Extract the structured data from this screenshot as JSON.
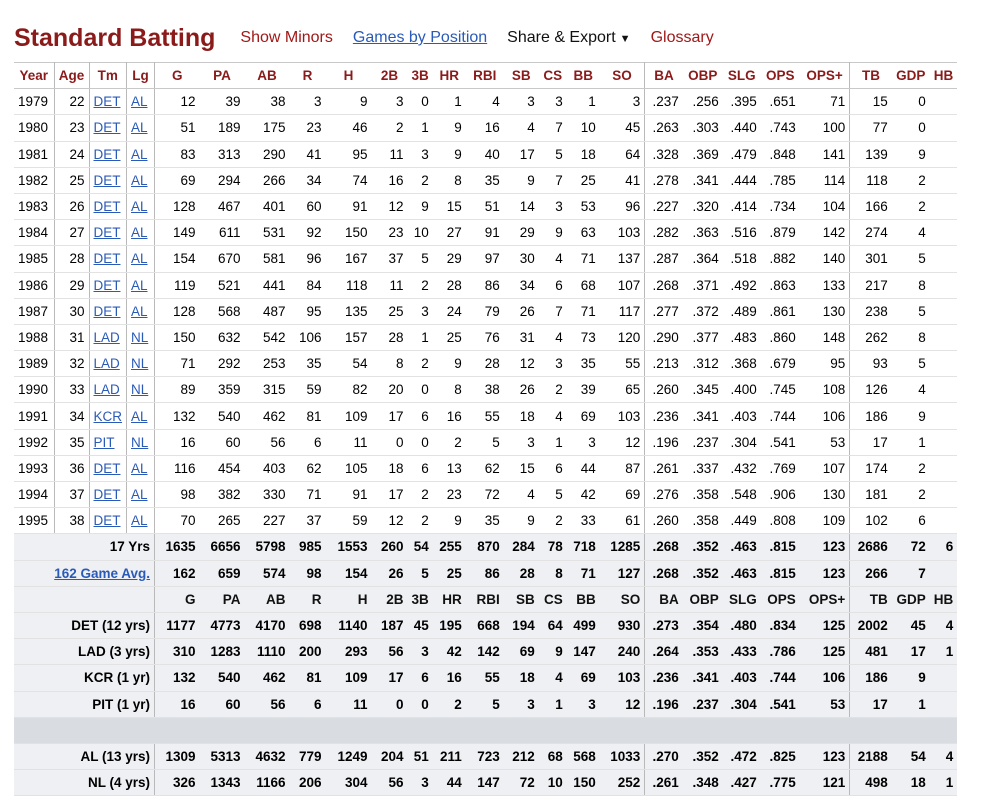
{
  "header": {
    "title": "Standard Batting",
    "show_minors": "Show Minors",
    "games_by_position": "Games by Position",
    "share_export": "Share & Export",
    "share_caret": "▼",
    "glossary": "Glossary"
  },
  "columns": [
    "Year",
    "Age",
    "Tm",
    "Lg",
    "G",
    "PA",
    "AB",
    "R",
    "H",
    "2B",
    "3B",
    "HR",
    "RBI",
    "SB",
    "CS",
    "BB",
    "SO",
    "BA",
    "OBP",
    "SLG",
    "OPS",
    "OPS+",
    "TB",
    "GDP",
    "HB"
  ],
  "rows": [
    [
      "1979",
      "22",
      "DET",
      "AL",
      "12",
      "39",
      "38",
      "3",
      "9",
      "3",
      "0",
      "1",
      "4",
      "3",
      "3",
      "1",
      "3",
      ".237",
      ".256",
      ".395",
      ".651",
      "71",
      "15",
      "0",
      ""
    ],
    [
      "1980",
      "23",
      "DET",
      "AL",
      "51",
      "189",
      "175",
      "23",
      "46",
      "2",
      "1",
      "9",
      "16",
      "4",
      "7",
      "10",
      "45",
      ".263",
      ".303",
      ".440",
      ".743",
      "100",
      "77",
      "0",
      ""
    ],
    [
      "1981",
      "24",
      "DET",
      "AL",
      "83",
      "313",
      "290",
      "41",
      "95",
      "11",
      "3",
      "9",
      "40",
      "17",
      "5",
      "18",
      "64",
      ".328",
      ".369",
      ".479",
      ".848",
      "141",
      "139",
      "9",
      ""
    ],
    [
      "1982",
      "25",
      "DET",
      "AL",
      "69",
      "294",
      "266",
      "34",
      "74",
      "16",
      "2",
      "8",
      "35",
      "9",
      "7",
      "25",
      "41",
      ".278",
      ".341",
      ".444",
      ".785",
      "114",
      "118",
      "2",
      ""
    ],
    [
      "1983",
      "26",
      "DET",
      "AL",
      "128",
      "467",
      "401",
      "60",
      "91",
      "12",
      "9",
      "15",
      "51",
      "14",
      "3",
      "53",
      "96",
      ".227",
      ".320",
      ".414",
      ".734",
      "104",
      "166",
      "2",
      ""
    ],
    [
      "1984",
      "27",
      "DET",
      "AL",
      "149",
      "611",
      "531",
      "92",
      "150",
      "23",
      "10",
      "27",
      "91",
      "29",
      "9",
      "63",
      "103",
      ".282",
      ".363",
      ".516",
      ".879",
      "142",
      "274",
      "4",
      ""
    ],
    [
      "1985",
      "28",
      "DET",
      "AL",
      "154",
      "670",
      "581",
      "96",
      "167",
      "37",
      "5",
      "29",
      "97",
      "30",
      "4",
      "71",
      "137",
      ".287",
      ".364",
      ".518",
      ".882",
      "140",
      "301",
      "5",
      ""
    ],
    [
      "1986",
      "29",
      "DET",
      "AL",
      "119",
      "521",
      "441",
      "84",
      "118",
      "11",
      "2",
      "28",
      "86",
      "34",
      "6",
      "68",
      "107",
      ".268",
      ".371",
      ".492",
      ".863",
      "133",
      "217",
      "8",
      ""
    ],
    [
      "1987",
      "30",
      "DET",
      "AL",
      "128",
      "568",
      "487",
      "95",
      "135",
      "25",
      "3",
      "24",
      "79",
      "26",
      "7",
      "71",
      "117",
      ".277",
      ".372",
      ".489",
      ".861",
      "130",
      "238",
      "5",
      ""
    ],
    [
      "1988",
      "31",
      "LAD",
      "NL",
      "150",
      "632",
      "542",
      "106",
      "157",
      "28",
      "1",
      "25",
      "76",
      "31",
      "4",
      "73",
      "120",
      ".290",
      ".377",
      ".483",
      ".860",
      "148",
      "262",
      "8",
      ""
    ],
    [
      "1989",
      "32",
      "LAD",
      "NL",
      "71",
      "292",
      "253",
      "35",
      "54",
      "8",
      "2",
      "9",
      "28",
      "12",
      "3",
      "35",
      "55",
      ".213",
      ".312",
      ".368",
      ".679",
      "95",
      "93",
      "5",
      ""
    ],
    [
      "1990",
      "33",
      "LAD",
      "NL",
      "89",
      "359",
      "315",
      "59",
      "82",
      "20",
      "0",
      "8",
      "38",
      "26",
      "2",
      "39",
      "65",
      ".260",
      ".345",
      ".400",
      ".745",
      "108",
      "126",
      "4",
      ""
    ],
    [
      "1991",
      "34",
      "KCR",
      "AL",
      "132",
      "540",
      "462",
      "81",
      "109",
      "17",
      "6",
      "16",
      "55",
      "18",
      "4",
      "69",
      "103",
      ".236",
      ".341",
      ".403",
      ".744",
      "106",
      "186",
      "9",
      ""
    ],
    [
      "1992",
      "35",
      "PIT",
      "NL",
      "16",
      "60",
      "56",
      "6",
      "11",
      "0",
      "0",
      "2",
      "5",
      "3",
      "1",
      "3",
      "12",
      ".196",
      ".237",
      ".304",
      ".541",
      "53",
      "17",
      "1",
      ""
    ],
    [
      "1993",
      "36",
      "DET",
      "AL",
      "116",
      "454",
      "403",
      "62",
      "105",
      "18",
      "6",
      "13",
      "62",
      "15",
      "6",
      "44",
      "87",
      ".261",
      ".337",
      ".432",
      ".769",
      "107",
      "174",
      "2",
      ""
    ],
    [
      "1994",
      "37",
      "DET",
      "AL",
      "98",
      "382",
      "330",
      "71",
      "91",
      "17",
      "2",
      "23",
      "72",
      "4",
      "5",
      "42",
      "69",
      ".276",
      ".358",
      ".548",
      ".906",
      "130",
      "181",
      "2",
      ""
    ],
    [
      "1995",
      "38",
      "DET",
      "AL",
      "70",
      "265",
      "227",
      "37",
      "59",
      "12",
      "2",
      "9",
      "35",
      "9",
      "2",
      "33",
      "61",
      ".260",
      ".358",
      ".449",
      ".808",
      "109",
      "102",
      "6",
      ""
    ]
  ],
  "totals": {
    "label": "17 Yrs",
    "values": [
      "1635",
      "6656",
      "5798",
      "985",
      "1553",
      "260",
      "54",
      "255",
      "870",
      "284",
      "78",
      "718",
      "1285",
      ".268",
      ".352",
      ".463",
      ".815",
      "123",
      "2686",
      "72",
      "6"
    ]
  },
  "avg162": {
    "label": "162 Game Avg.",
    "values": [
      "162",
      "659",
      "574",
      "98",
      "154",
      "26",
      "5",
      "25",
      "86",
      "28",
      "8",
      "71",
      "127",
      ".268",
      ".352",
      ".463",
      ".815",
      "123",
      "266",
      "7",
      ""
    ]
  },
  "team_splits": [
    {
      "label": "DET (12 yrs)",
      "values": [
        "1177",
        "4773",
        "4170",
        "698",
        "1140",
        "187",
        "45",
        "195",
        "668",
        "194",
        "64",
        "499",
        "930",
        ".273",
        ".354",
        ".480",
        ".834",
        "125",
        "2002",
        "45",
        "4"
      ]
    },
    {
      "label": "LAD (3 yrs)",
      "values": [
        "310",
        "1283",
        "1110",
        "200",
        "293",
        "56",
        "3",
        "42",
        "142",
        "69",
        "9",
        "147",
        "240",
        ".264",
        ".353",
        ".433",
        ".786",
        "125",
        "481",
        "17",
        "1"
      ]
    },
    {
      "label": "KCR (1 yr)",
      "values": [
        "132",
        "540",
        "462",
        "81",
        "109",
        "17",
        "6",
        "16",
        "55",
        "18",
        "4",
        "69",
        "103",
        ".236",
        ".341",
        ".403",
        ".744",
        "106",
        "186",
        "9",
        ""
      ]
    },
    {
      "label": "PIT (1 yr)",
      "values": [
        "16",
        "60",
        "56",
        "6",
        "11",
        "0",
        "0",
        "2",
        "5",
        "3",
        "1",
        "3",
        "12",
        ".196",
        ".237",
        ".304",
        ".541",
        "53",
        "17",
        "1",
        ""
      ]
    }
  ],
  "league_splits": [
    {
      "label": "AL (13 yrs)",
      "values": [
        "1309",
        "5313",
        "4632",
        "779",
        "1249",
        "204",
        "51",
        "211",
        "723",
        "212",
        "68",
        "568",
        "1033",
        ".270",
        ".352",
        ".472",
        ".825",
        "123",
        "2188",
        "54",
        "4"
      ]
    },
    {
      "label": "NL (4 yrs)",
      "values": [
        "326",
        "1343",
        "1166",
        "206",
        "304",
        "56",
        "3",
        "44",
        "147",
        "72",
        "10",
        "150",
        "252",
        ".261",
        ".348",
        ".427",
        ".775",
        "121",
        "498",
        "18",
        "1"
      ]
    }
  ]
}
